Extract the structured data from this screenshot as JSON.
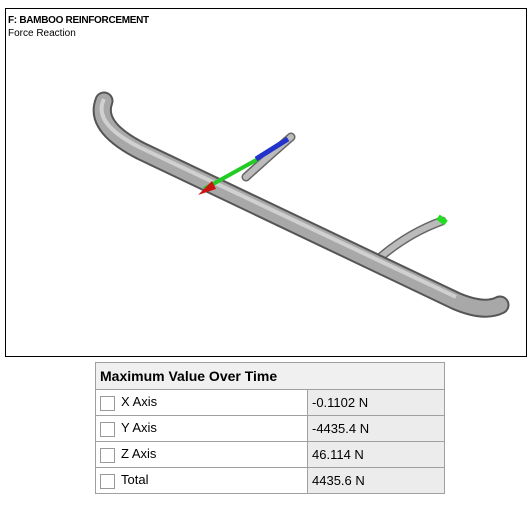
{
  "header": {
    "title": "F: BAMBOO REINFORCEMENT",
    "subtitle": "Force Reaction"
  },
  "table": {
    "title": "Maximum Value Over Time",
    "rows": [
      [
        "X Axis",
        "-0.1102 N"
      ],
      [
        "Y Axis",
        "-4435.4 N"
      ],
      [
        "Z Axis",
        "46.114 N"
      ],
      [
        "Total",
        "4435.6 N"
      ]
    ]
  }
}
